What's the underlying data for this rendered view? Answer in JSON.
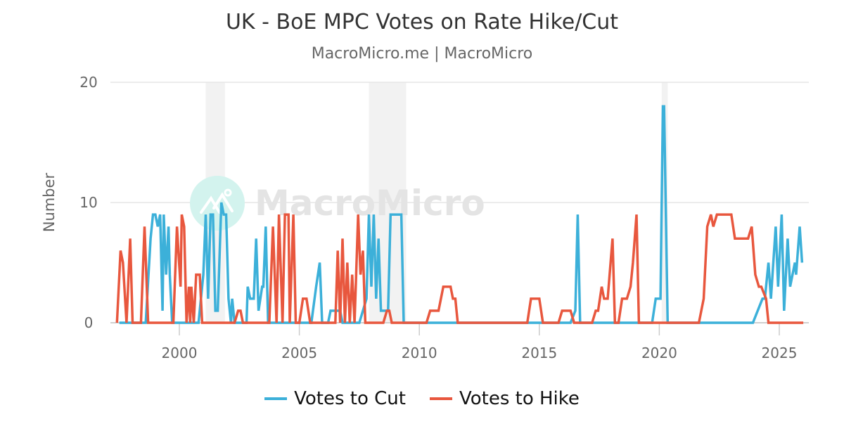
{
  "header": {
    "title": "UK - BoE MPC Votes on Rate Hike/Cut",
    "subtitle": "MacroMicro.me | MacroMicro"
  },
  "watermark": {
    "text": "MacroMicro"
  },
  "colors": {
    "cut": "#3cb0d9",
    "hike": "#e8573e",
    "grid": "#e6e6e6",
    "recession": "#f2f2f2",
    "axis_text": "#666666"
  },
  "legend": [
    {
      "label": "Votes to Cut",
      "color": "#3cb0d9"
    },
    {
      "label": "Votes to Hike",
      "color": "#e8573e"
    }
  ],
  "chart_data": {
    "type": "line",
    "title": "UK - BoE MPC Votes on Rate Hike/Cut",
    "subtitle": "MacroMicro.me | MacroMicro",
    "xlabel": "",
    "ylabel": "Number",
    "xlim": [
      1997.25,
      2026.3
    ],
    "ylim": [
      0,
      20
    ],
    "yticks": [
      0,
      10,
      20
    ],
    "xticks": [
      2000,
      2005,
      2010,
      2015,
      2020,
      2025
    ],
    "grid": true,
    "legend_position": "bottom",
    "recession_bands": [
      [
        2001.1,
        2001.9
      ],
      [
        2007.9,
        2009.45
      ],
      [
        2020.1,
        2020.35
      ]
    ],
    "series": [
      {
        "name": "Votes to Cut",
        "color": "#3cb0d9",
        "points": [
          [
            1997.5,
            0
          ],
          [
            1998.6,
            0
          ],
          [
            1998.8,
            7
          ],
          [
            1998.9,
            9
          ],
          [
            1999.0,
            9
          ],
          [
            1999.1,
            8
          ],
          [
            1999.2,
            9
          ],
          [
            1999.3,
            1
          ],
          [
            1999.35,
            9
          ],
          [
            1999.45,
            4
          ],
          [
            1999.55,
            8
          ],
          [
            1999.6,
            4
          ],
          [
            1999.7,
            0
          ],
          [
            2000.8,
            0
          ],
          [
            2001.0,
            4
          ],
          [
            2001.1,
            9
          ],
          [
            2001.2,
            2
          ],
          [
            2001.3,
            9
          ],
          [
            2001.4,
            9
          ],
          [
            2001.5,
            1
          ],
          [
            2001.6,
            1
          ],
          [
            2001.75,
            10
          ],
          [
            2001.85,
            9
          ],
          [
            2001.95,
            9
          ],
          [
            2002.05,
            2
          ],
          [
            2002.15,
            0
          ],
          [
            2002.2,
            2
          ],
          [
            2002.3,
            0
          ],
          [
            2002.8,
            0
          ],
          [
            2002.85,
            3
          ],
          [
            2002.95,
            2
          ],
          [
            2003.1,
            2
          ],
          [
            2003.2,
            7
          ],
          [
            2003.3,
            1
          ],
          [
            2003.45,
            3
          ],
          [
            2003.5,
            3
          ],
          [
            2003.6,
            8
          ],
          [
            2003.7,
            0
          ],
          [
            2005.5,
            0
          ],
          [
            2005.7,
            3
          ],
          [
            2005.85,
            5
          ],
          [
            2005.95,
            0
          ],
          [
            2006.2,
            0
          ],
          [
            2006.3,
            1
          ],
          [
            2006.7,
            1
          ],
          [
            2006.8,
            0
          ],
          [
            2007.5,
            0
          ],
          [
            2007.8,
            2
          ],
          [
            2007.9,
            9
          ],
          [
            2008.0,
            3
          ],
          [
            2008.1,
            9
          ],
          [
            2008.2,
            2
          ],
          [
            2008.3,
            7
          ],
          [
            2008.4,
            1
          ],
          [
            2008.7,
            1
          ],
          [
            2008.8,
            9
          ],
          [
            2009.0,
            9
          ],
          [
            2009.25,
            9
          ],
          [
            2009.35,
            0
          ],
          [
            2016.3,
            0
          ],
          [
            2016.5,
            1
          ],
          [
            2016.6,
            9
          ],
          [
            2016.7,
            0
          ],
          [
            2019.7,
            0
          ],
          [
            2019.85,
            2
          ],
          [
            2020.05,
            2
          ],
          [
            2020.15,
            18
          ],
          [
            2020.2,
            18
          ],
          [
            2020.35,
            0
          ],
          [
            2023.9,
            0
          ],
          [
            2024.1,
            1
          ],
          [
            2024.3,
            2
          ],
          [
            2024.4,
            2
          ],
          [
            2024.55,
            5
          ],
          [
            2024.65,
            2
          ],
          [
            2024.85,
            8
          ],
          [
            2024.95,
            3
          ],
          [
            2025.1,
            9
          ],
          [
            2025.2,
            1
          ],
          [
            2025.35,
            7
          ],
          [
            2025.45,
            3
          ],
          [
            2025.55,
            4
          ],
          [
            2025.65,
            5
          ],
          [
            2025.7,
            4
          ],
          [
            2025.85,
            8
          ],
          [
            2025.95,
            5
          ]
        ]
      },
      {
        "name": "Votes to Hike",
        "color": "#e8573e",
        "points": [
          [
            1997.4,
            0
          ],
          [
            1997.55,
            6
          ],
          [
            1997.65,
            5
          ],
          [
            1997.8,
            0
          ],
          [
            1997.95,
            7
          ],
          [
            1998.05,
            0
          ],
          [
            1998.4,
            0
          ],
          [
            1998.55,
            8
          ],
          [
            1998.7,
            0
          ],
          [
            1999.6,
            0
          ],
          [
            1999.75,
            0
          ],
          [
            1999.9,
            8
          ],
          [
            2000.05,
            3
          ],
          [
            2000.1,
            9
          ],
          [
            2000.2,
            8
          ],
          [
            2000.3,
            0
          ],
          [
            2000.4,
            3
          ],
          [
            2000.45,
            0
          ],
          [
            2000.5,
            3
          ],
          [
            2000.6,
            0
          ],
          [
            2000.7,
            4
          ],
          [
            2000.85,
            4
          ],
          [
            2000.95,
            0
          ],
          [
            2002.3,
            0
          ],
          [
            2002.45,
            1
          ],
          [
            2002.55,
            1
          ],
          [
            2002.65,
            0
          ],
          [
            2003.75,
            0
          ],
          [
            2003.9,
            8
          ],
          [
            2004.05,
            0
          ],
          [
            2004.15,
            9
          ],
          [
            2004.3,
            0
          ],
          [
            2004.4,
            9
          ],
          [
            2004.55,
            9
          ],
          [
            2004.6,
            0
          ],
          [
            2004.75,
            9
          ],
          [
            2004.85,
            0
          ],
          [
            2005.0,
            0
          ],
          [
            2005.15,
            2
          ],
          [
            2005.3,
            2
          ],
          [
            2005.45,
            0
          ],
          [
            2006.3,
            0
          ],
          [
            2006.5,
            0
          ],
          [
            2006.6,
            6
          ],
          [
            2006.7,
            0
          ],
          [
            2006.8,
            7
          ],
          [
            2006.9,
            0
          ],
          [
            2007.0,
            5
          ],
          [
            2007.1,
            0
          ],
          [
            2007.2,
            4
          ],
          [
            2007.3,
            0
          ],
          [
            2007.45,
            9
          ],
          [
            2007.55,
            4
          ],
          [
            2007.65,
            6
          ],
          [
            2007.75,
            0
          ],
          [
            2008.5,
            0
          ],
          [
            2008.65,
            1
          ],
          [
            2008.75,
            1
          ],
          [
            2008.85,
            0
          ],
          [
            2010.3,
            0
          ],
          [
            2010.45,
            1
          ],
          [
            2010.8,
            1
          ],
          [
            2011.0,
            3
          ],
          [
            2011.3,
            3
          ],
          [
            2011.4,
            2
          ],
          [
            2011.5,
            2
          ],
          [
            2011.6,
            0
          ],
          [
            2014.5,
            0
          ],
          [
            2014.65,
            2
          ],
          [
            2015.0,
            2
          ],
          [
            2015.15,
            0
          ],
          [
            2015.8,
            0
          ],
          [
            2015.95,
            1
          ],
          [
            2016.3,
            1
          ],
          [
            2016.45,
            0
          ],
          [
            2017.2,
            0
          ],
          [
            2017.35,
            1
          ],
          [
            2017.45,
            1
          ],
          [
            2017.6,
            3
          ],
          [
            2017.7,
            2
          ],
          [
            2017.85,
            2
          ],
          [
            2018.05,
            7
          ],
          [
            2018.15,
            0
          ],
          [
            2018.3,
            0
          ],
          [
            2018.45,
            2
          ],
          [
            2018.65,
            2
          ],
          [
            2018.8,
            3
          ],
          [
            2018.9,
            5
          ],
          [
            2019.05,
            9
          ],
          [
            2019.15,
            0
          ],
          [
            2021.65,
            0
          ],
          [
            2021.85,
            2
          ],
          [
            2022.0,
            8
          ],
          [
            2022.15,
            9
          ],
          [
            2022.25,
            8
          ],
          [
            2022.4,
            9
          ],
          [
            2022.6,
            9
          ],
          [
            2023.0,
            9
          ],
          [
            2023.15,
            7
          ],
          [
            2023.5,
            7
          ],
          [
            2023.7,
            7
          ],
          [
            2023.85,
            8
          ],
          [
            2024.0,
            4
          ],
          [
            2024.15,
            3
          ],
          [
            2024.25,
            3
          ],
          [
            2024.45,
            2
          ],
          [
            2024.55,
            0
          ],
          [
            2026.0,
            0
          ]
        ]
      }
    ]
  }
}
